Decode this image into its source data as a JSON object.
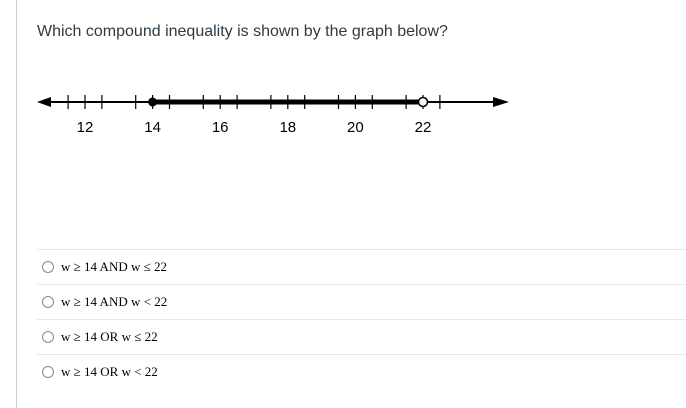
{
  "question": {
    "text": "Which compound inequality is shown by the graph below?"
  },
  "number_line": {
    "min": 11,
    "max": 23.5,
    "tick_start": 11.5,
    "tick_step": 1,
    "tick_end": 22.5,
    "labels": [
      "12",
      "14",
      "16",
      "18",
      "20",
      "22"
    ],
    "label_values": [
      12,
      14,
      16,
      18,
      20,
      22
    ],
    "closed_point": 14,
    "open_point": 22
  },
  "answers": [
    {
      "text": "w ≥ 14 AND w ≤ 22"
    },
    {
      "text": "w ≥ 14 AND w < 22"
    },
    {
      "text": "w ≥ 14 OR w ≤ 22"
    },
    {
      "text": "w ≥ 14 OR w < 22"
    }
  ]
}
